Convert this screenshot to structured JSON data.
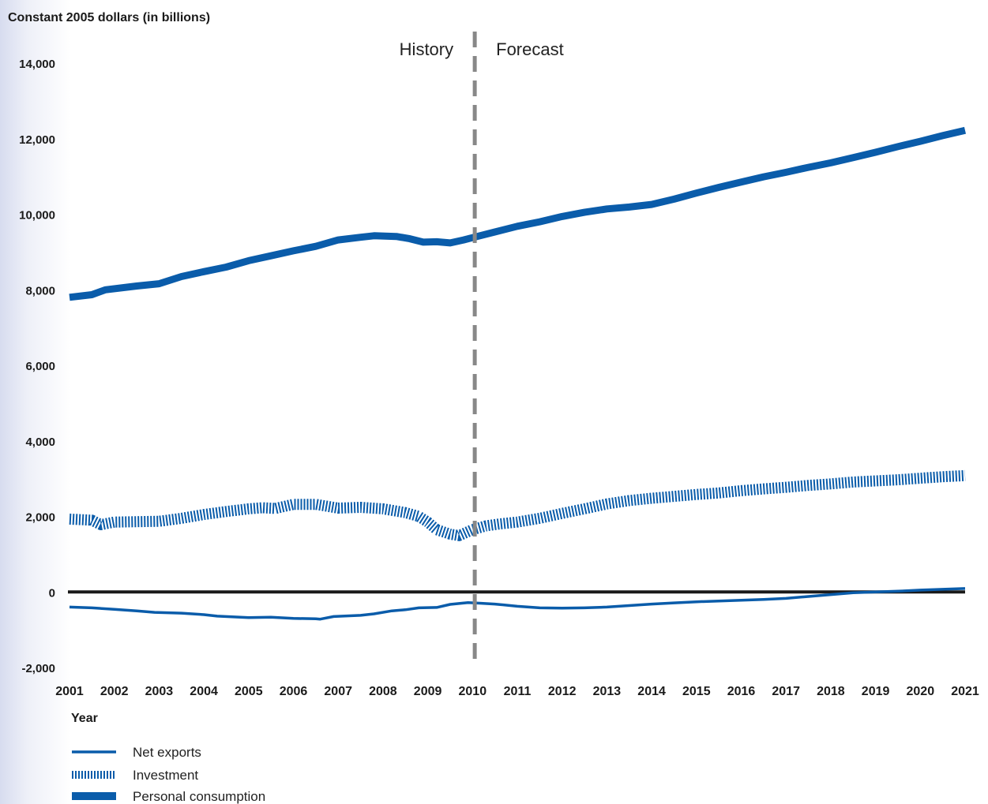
{
  "chart_data": {
    "type": "line",
    "ylabel": "Constant 2005 dollars (in billions)",
    "xlabel": "Year",
    "ylim": [
      -2000,
      14000
    ],
    "xlim": [
      2001,
      2021
    ],
    "yticks": [
      {
        "value": 14000,
        "label": "14,000"
      },
      {
        "value": 12000,
        "label": "12,000"
      },
      {
        "value": 10000,
        "label": "10,000"
      },
      {
        "value": 8000,
        "label": "8,000"
      },
      {
        "value": 6000,
        "label": "6,000"
      },
      {
        "value": 4000,
        "label": "4,000"
      },
      {
        "value": 2000,
        "label": "2,000"
      },
      {
        "value": 0,
        "label": "0"
      },
      {
        "value": -2000,
        "label": "-2,000"
      }
    ],
    "xticks": [
      2001,
      2002,
      2003,
      2004,
      2005,
      2006,
      2007,
      2008,
      2009,
      2010,
      2011,
      2012,
      2013,
      2014,
      2015,
      2016,
      2017,
      2018,
      2019,
      2020,
      2021
    ],
    "divider": {
      "x": 2010.05,
      "left_label": "History",
      "right_label": "Forecast"
    },
    "zero_line": 0,
    "grid": false,
    "legend_position": "bottom-left",
    "colors": {
      "series": "#0a5caa",
      "divider": "#888888",
      "zero_line": "#1a1a1a"
    },
    "series": [
      {
        "name": "Net exports",
        "style": "solid-thin",
        "points": [
          [
            2001,
            -400
          ],
          [
            2001.5,
            -420
          ],
          [
            2002,
            -460
          ],
          [
            2002.5,
            -500
          ],
          [
            2002.9,
            -540
          ],
          [
            2003.5,
            -560
          ],
          [
            2004,
            -600
          ],
          [
            2004.3,
            -640
          ],
          [
            2005,
            -680
          ],
          [
            2005.5,
            -670
          ],
          [
            2006,
            -700
          ],
          [
            2006.5,
            -710
          ],
          [
            2006.6,
            -720
          ],
          [
            2006.9,
            -650
          ],
          [
            2007.5,
            -620
          ],
          [
            2007.8,
            -580
          ],
          [
            2008.2,
            -500
          ],
          [
            2008.5,
            -470
          ],
          [
            2008.8,
            -420
          ],
          [
            2009.2,
            -410
          ],
          [
            2009.5,
            -330
          ],
          [
            2009.9,
            -280
          ],
          [
            2010.2,
            -300
          ],
          [
            2010.5,
            -320
          ],
          [
            2011,
            -380
          ],
          [
            2011.5,
            -420
          ],
          [
            2012,
            -430
          ],
          [
            2012.5,
            -420
          ],
          [
            2013,
            -400
          ],
          [
            2013.5,
            -360
          ],
          [
            2014,
            -320
          ],
          [
            2014.5,
            -290
          ],
          [
            2015,
            -260
          ],
          [
            2015.5,
            -240
          ],
          [
            2016,
            -220
          ],
          [
            2016.5,
            -200
          ],
          [
            2017,
            -170
          ],
          [
            2017.5,
            -120
          ],
          [
            2018,
            -70
          ],
          [
            2018.5,
            -20
          ],
          [
            2019,
            0
          ],
          [
            2019.5,
            20
          ],
          [
            2020,
            50
          ],
          [
            2020.5,
            70
          ],
          [
            2021,
            90
          ]
        ]
      },
      {
        "name": "Investment",
        "style": "hatched",
        "points": [
          [
            2001,
            1930
          ],
          [
            2001.5,
            1900
          ],
          [
            2001.7,
            1780
          ],
          [
            2002,
            1850
          ],
          [
            2002.5,
            1860
          ],
          [
            2003,
            1870
          ],
          [
            2003.5,
            1950
          ],
          [
            2004,
            2050
          ],
          [
            2004.5,
            2130
          ],
          [
            2005,
            2200
          ],
          [
            2005.3,
            2230
          ],
          [
            2005.6,
            2210
          ],
          [
            2006,
            2320
          ],
          [
            2006.5,
            2320
          ],
          [
            2007,
            2220
          ],
          [
            2007.5,
            2240
          ],
          [
            2008,
            2200
          ],
          [
            2008.5,
            2100
          ],
          [
            2008.8,
            2000
          ],
          [
            2009,
            1850
          ],
          [
            2009.2,
            1650
          ],
          [
            2009.5,
            1530
          ],
          [
            2009.7,
            1490
          ],
          [
            2010,
            1650
          ],
          [
            2010.3,
            1750
          ],
          [
            2010.6,
            1800
          ],
          [
            2011,
            1850
          ],
          [
            2011.5,
            1950
          ],
          [
            2012,
            2080
          ],
          [
            2012.5,
            2200
          ],
          [
            2013,
            2330
          ],
          [
            2013.5,
            2420
          ],
          [
            2014,
            2480
          ],
          [
            2014.5,
            2530
          ],
          [
            2015,
            2580
          ],
          [
            2015.5,
            2620
          ],
          [
            2016,
            2680
          ],
          [
            2016.5,
            2730
          ],
          [
            2017,
            2770
          ],
          [
            2017.5,
            2820
          ],
          [
            2018,
            2860
          ],
          [
            2018.5,
            2910
          ],
          [
            2019,
            2940
          ],
          [
            2019.5,
            2970
          ],
          [
            2020,
            3010
          ],
          [
            2020.5,
            3050
          ],
          [
            2021,
            3080
          ]
        ]
      },
      {
        "name": "Personal consumption",
        "style": "solid-thick",
        "points": [
          [
            2001,
            7800
          ],
          [
            2001.5,
            7870
          ],
          [
            2001.8,
            8000
          ],
          [
            2002.5,
            8100
          ],
          [
            2003,
            8160
          ],
          [
            2003.5,
            8350
          ],
          [
            2004,
            8480
          ],
          [
            2004.5,
            8600
          ],
          [
            2005,
            8770
          ],
          [
            2005.5,
            8900
          ],
          [
            2006,
            9030
          ],
          [
            2006.5,
            9150
          ],
          [
            2007,
            9320
          ],
          [
            2007.5,
            9390
          ],
          [
            2007.8,
            9430
          ],
          [
            2008.3,
            9410
          ],
          [
            2008.6,
            9350
          ],
          [
            2008.9,
            9260
          ],
          [
            2009.2,
            9270
          ],
          [
            2009.5,
            9240
          ],
          [
            2009.8,
            9320
          ],
          [
            2010,
            9380
          ],
          [
            2010.5,
            9530
          ],
          [
            2011,
            9680
          ],
          [
            2011.5,
            9800
          ],
          [
            2012,
            9940
          ],
          [
            2012.5,
            10050
          ],
          [
            2013,
            10140
          ],
          [
            2013.5,
            10190
          ],
          [
            2014,
            10260
          ],
          [
            2014.5,
            10400
          ],
          [
            2015,
            10560
          ],
          [
            2015.5,
            10710
          ],
          [
            2016,
            10850
          ],
          [
            2016.5,
            10990
          ],
          [
            2017,
            11110
          ],
          [
            2017.5,
            11240
          ],
          [
            2018,
            11360
          ],
          [
            2018.5,
            11500
          ],
          [
            2019,
            11640
          ],
          [
            2019.5,
            11790
          ],
          [
            2020,
            11930
          ],
          [
            2020.5,
            12080
          ],
          [
            2021,
            12220
          ]
        ]
      }
    ]
  }
}
